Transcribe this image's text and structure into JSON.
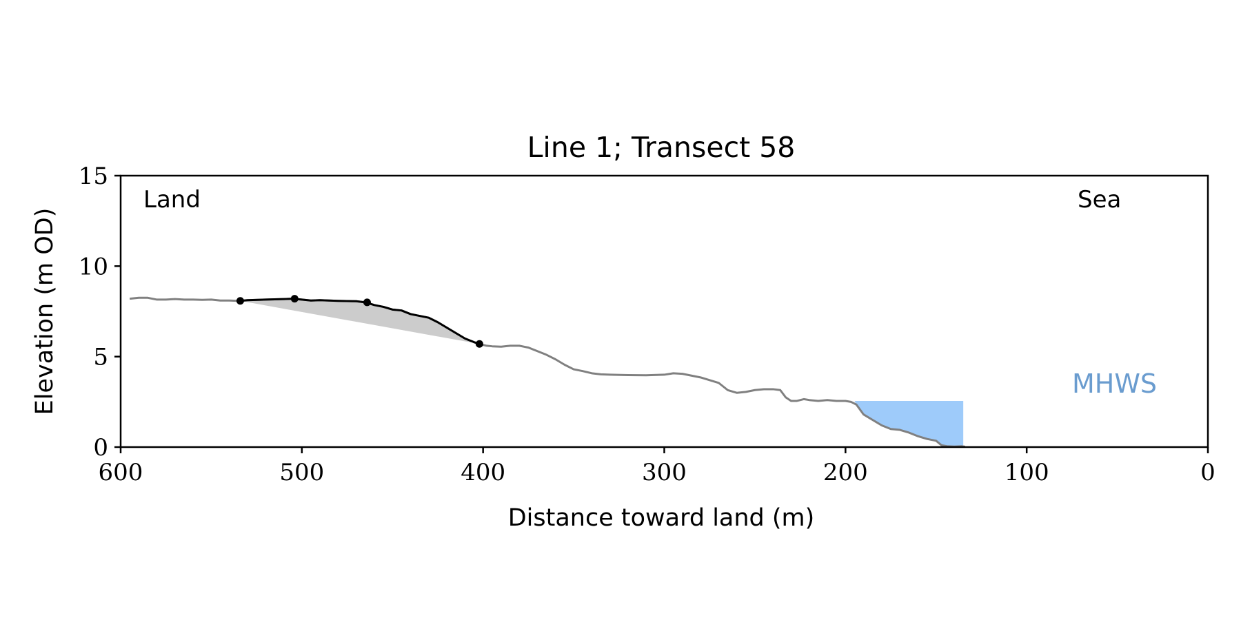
{
  "chart_data": {
    "type": "line",
    "title": "Line 1; Transect 58",
    "xlabel": "Distance toward land (m)",
    "ylabel": "Elevation (m OD)",
    "xlim": [
      600,
      0
    ],
    "ylim": [
      0,
      15
    ],
    "x_ticks": [
      600,
      500,
      400,
      300,
      200,
      100,
      0
    ],
    "y_ticks": [
      0,
      5,
      10,
      15
    ],
    "x_tick_labels": [
      "600",
      "500",
      "400",
      "300",
      "200",
      "100",
      "0"
    ],
    "y_tick_labels": [
      "0",
      "5",
      "10",
      "15"
    ],
    "grid": false,
    "annotations": {
      "land": "Land",
      "sea": "Sea",
      "mhws": "MHWS"
    },
    "colors": {
      "profile": "#808080",
      "highlight": "#000000",
      "fill_area": "#cccccc",
      "water": "#9ecbfa",
      "mhws_label": "#6a9ccf"
    },
    "mhws_level": 2.55,
    "water_x_range": [
      195,
      135
    ],
    "series": [
      {
        "role": "profile",
        "x": [
          595,
          590,
          585,
          580,
          575,
          570,
          565,
          560,
          555,
          550,
          545,
          540,
          535,
          530,
          520,
          510,
          505,
          500,
          495,
          490,
          480,
          470,
          465,
          460,
          455,
          450,
          445,
          440,
          435,
          430,
          425,
          420,
          415,
          410,
          405,
          402,
          398,
          395,
          390,
          385,
          380,
          375,
          370,
          365,
          360,
          355,
          350,
          345,
          340,
          335,
          330,
          320,
          310,
          300,
          295,
          290,
          285,
          280,
          275,
          270,
          265,
          260,
          255,
          250,
          245,
          240,
          236,
          233,
          230,
          227,
          223,
          220,
          215,
          210,
          205,
          200,
          197,
          194,
          190,
          185,
          180,
          175,
          170,
          165,
          160,
          155,
          150,
          147,
          144,
          140,
          136,
          134
        ],
        "y": [
          8.2,
          8.25,
          8.25,
          8.15,
          8.15,
          8.18,
          8.15,
          8.15,
          8.14,
          8.15,
          8.1,
          8.1,
          8.08,
          8.12,
          8.15,
          8.18,
          8.2,
          8.15,
          8.1,
          8.12,
          8.08,
          8.06,
          8.0,
          7.85,
          7.75,
          7.6,
          7.55,
          7.35,
          7.25,
          7.15,
          6.9,
          6.6,
          6.3,
          6.0,
          5.8,
          5.7,
          5.6,
          5.57,
          5.55,
          5.6,
          5.6,
          5.5,
          5.3,
          5.1,
          4.85,
          4.55,
          4.3,
          4.2,
          4.08,
          4.02,
          4.0,
          3.98,
          3.97,
          4.0,
          4.08,
          4.05,
          3.95,
          3.85,
          3.7,
          3.55,
          3.15,
          3.0,
          3.05,
          3.15,
          3.2,
          3.2,
          3.15,
          2.75,
          2.55,
          2.55,
          2.65,
          2.6,
          2.55,
          2.6,
          2.55,
          2.55,
          2.5,
          2.35,
          1.8,
          1.5,
          1.2,
          1.0,
          0.95,
          0.8,
          0.6,
          0.45,
          0.35,
          0.1,
          0.05,
          0.03,
          0.05,
          0.02
        ]
      },
      {
        "role": "highlight",
        "x": [
          534,
          530,
          520,
          510,
          505,
          500,
          495,
          490,
          480,
          470,
          465,
          460,
          455,
          450,
          445,
          440,
          435,
          430,
          425,
          420,
          415,
          410,
          405,
          402
        ],
        "y": [
          8.08,
          8.12,
          8.15,
          8.18,
          8.2,
          8.15,
          8.1,
          8.12,
          8.08,
          8.06,
          8.0,
          7.85,
          7.75,
          7.6,
          7.55,
          7.35,
          7.25,
          7.15,
          6.9,
          6.6,
          6.3,
          6.0,
          5.8,
          5.7
        ]
      },
      {
        "role": "points",
        "x": [
          534,
          504,
          464,
          402
        ],
        "y": [
          8.08,
          8.2,
          8.0,
          5.7
        ]
      },
      {
        "role": "chord",
        "x": [
          534,
          402
        ],
        "y": [
          8.08,
          5.7
        ]
      }
    ]
  }
}
